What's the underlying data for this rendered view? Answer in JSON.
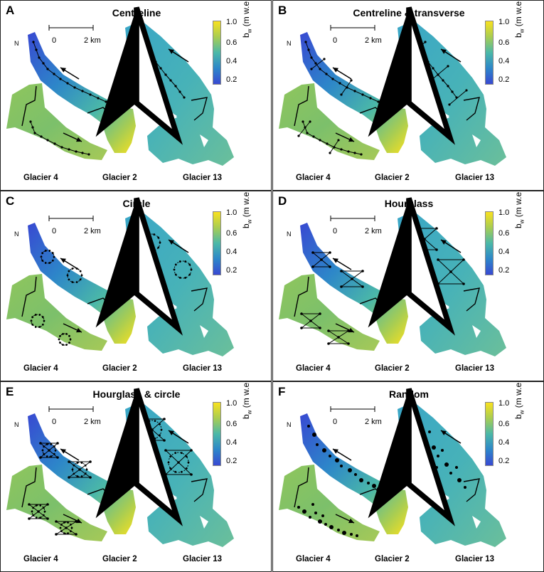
{
  "colorbar": {
    "ticks": [
      "1.0",
      "0.6",
      "0.4",
      "0.2"
    ],
    "symbol": "b",
    "sub": "w",
    "unit": "(m w.e.)",
    "colors": [
      "#f9e11f",
      "#a8cd52",
      "#4bb8a8",
      "#2d86c9",
      "#3849d2"
    ]
  },
  "scale": {
    "left": "0",
    "right": "2 km"
  },
  "north": "N",
  "glaciers": [
    "Glacier 4",
    "Glacier 2",
    "Glacier 13"
  ],
  "panels": [
    {
      "label": "A",
      "title": "Centreline",
      "scheme": "centreline"
    },
    {
      "label": "B",
      "title": "Centreline & transverse",
      "scheme": "transverse"
    },
    {
      "label": "C",
      "title": "Circle",
      "scheme": "circle"
    },
    {
      "label": "D",
      "title": "Hourglass",
      "scheme": "hourglass"
    },
    {
      "label": "E",
      "title": "Hourglass & circle",
      "scheme": "hourglass-circle"
    },
    {
      "label": "F",
      "title": "Random",
      "scheme": "random"
    }
  ]
}
